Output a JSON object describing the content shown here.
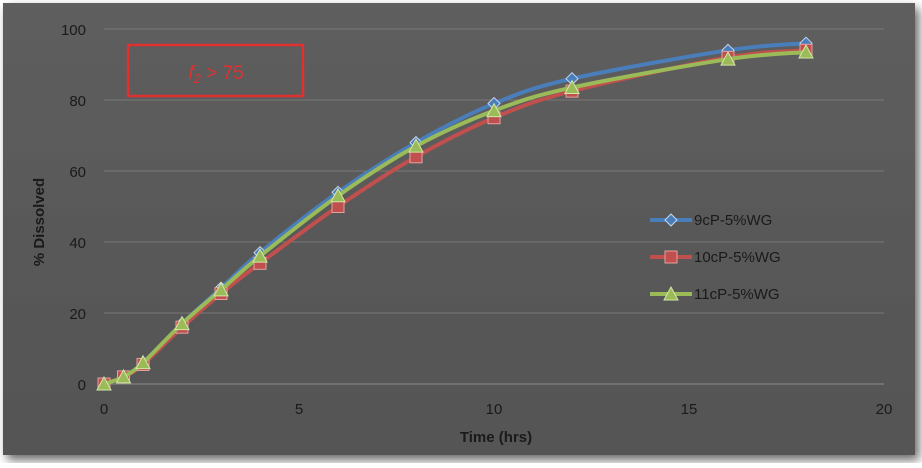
{
  "chart_data": {
    "type": "line",
    "title": "",
    "xlabel": "Time (hrs)",
    "ylabel": "% Dissolved",
    "xlim": [
      0,
      20
    ],
    "ylim": [
      0,
      100
    ],
    "xticks": [
      0,
      5,
      10,
      15,
      20
    ],
    "yticks": [
      0,
      20,
      40,
      60,
      80,
      100
    ],
    "grid": "horizontal",
    "legend": "right",
    "background": "#595959",
    "annotation": {
      "prefix": "f",
      "subscript": "2",
      "text": " > 75",
      "color": "#e03030"
    },
    "x": [
      0,
      0.5,
      1,
      2,
      3,
      4,
      6,
      8,
      10,
      12,
      16,
      18
    ],
    "series": [
      {
        "name": "9cP-5%WG",
        "color": "#4a7ebb",
        "marker": "diamond",
        "values": [
          0,
          2,
          6,
          17,
          27,
          37,
          54,
          68,
          79,
          86,
          94,
          96
        ]
      },
      {
        "name": "10cP-5%WG",
        "color": "#c0504d",
        "marker": "square",
        "values": [
          0,
          2,
          5.5,
          16,
          25.5,
          34,
          50,
          64,
          75,
          82.5,
          92,
          94
        ]
      },
      {
        "name": "11cP-5%WG",
        "color": "#9bbb59",
        "marker": "triangle",
        "values": [
          0,
          2,
          6,
          17,
          26.5,
          36,
          53,
          67,
          77,
          83.5,
          91.5,
          93.5
        ]
      }
    ]
  }
}
